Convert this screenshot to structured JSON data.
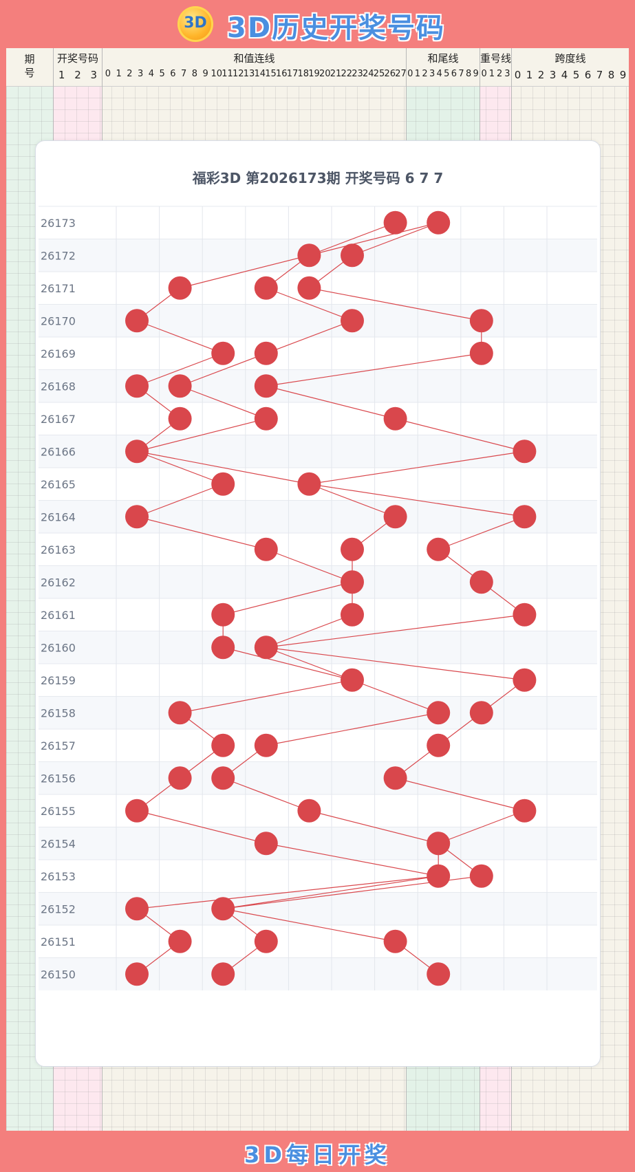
{
  "header": {
    "logo_text": "3D",
    "title": "3D历史开奖号码"
  },
  "table_headers": {
    "period": "期号",
    "draw_numbers": "开奖号码",
    "sum_line": "和值连线",
    "sum_tail_line": "和尾线",
    "repeat_line": "重号线",
    "span_line": "跨度线",
    "draw_number_positions": [
      "1",
      "2",
      "3"
    ],
    "sum_values": [
      "0",
      "1",
      "2",
      "3",
      "4",
      "5",
      "6",
      "7",
      "8",
      "9",
      "10",
      "11",
      "12",
      "13",
      "14",
      "15",
      "16",
      "17",
      "18",
      "19",
      "20",
      "21",
      "22",
      "23",
      "24",
      "25",
      "26",
      "27"
    ],
    "sum_tail_values": [
      "0",
      "1",
      "2",
      "3",
      "4",
      "5",
      "6",
      "7",
      "8",
      "9"
    ],
    "repeat_values": [
      "0",
      "1",
      "2",
      "3"
    ],
    "span_values": [
      "0",
      "1",
      "2",
      "3",
      "4",
      "5",
      "6",
      "7",
      "8",
      "9"
    ]
  },
  "card": {
    "title": "福彩3D 第2026173期  开奖号码 6 7 7"
  },
  "chart_data": {
    "type": "scatter",
    "x_categories": [
      "0",
      "1",
      "2",
      "3",
      "4",
      "5",
      "6",
      "7",
      "8",
      "9"
    ],
    "x_axis_labels_printed": false,
    "rows": [
      {
        "period": "26173",
        "digits": [
          6,
          7,
          7
        ]
      },
      {
        "period": "26172",
        "digits": [
          4,
          5,
          4
        ]
      },
      {
        "period": "26171",
        "digits": [
          1,
          3,
          4
        ]
      },
      {
        "period": "26170",
        "digits": [
          0,
          5,
          8
        ]
      },
      {
        "period": "26169",
        "digits": [
          2,
          3,
          8
        ]
      },
      {
        "period": "26168",
        "digits": [
          0,
          1,
          3
        ]
      },
      {
        "period": "26167",
        "digits": [
          1,
          3,
          6
        ]
      },
      {
        "period": "26166",
        "digits": [
          0,
          0,
          9
        ]
      },
      {
        "period": "26165",
        "digits": [
          2,
          4,
          4
        ]
      },
      {
        "period": "26164",
        "digits": [
          0,
          6,
          9
        ]
      },
      {
        "period": "26163",
        "digits": [
          3,
          5,
          7
        ]
      },
      {
        "period": "26162",
        "digits": [
          5,
          5,
          8
        ]
      },
      {
        "period": "26161",
        "digits": [
          2,
          5,
          9
        ]
      },
      {
        "period": "26160",
        "digits": [
          2,
          3,
          3
        ]
      },
      {
        "period": "26159",
        "digits": [
          5,
          5,
          9
        ]
      },
      {
        "period": "26158",
        "digits": [
          1,
          7,
          8
        ]
      },
      {
        "period": "26157",
        "digits": [
          2,
          3,
          7
        ]
      },
      {
        "period": "26156",
        "digits": [
          1,
          2,
          6
        ]
      },
      {
        "period": "26155",
        "digits": [
          0,
          4,
          9
        ]
      },
      {
        "period": "26154",
        "digits": [
          3,
          7,
          7
        ]
      },
      {
        "period": "26153",
        "digits": [
          7,
          7,
          8
        ]
      },
      {
        "period": "26152",
        "digits": [
          0,
          2,
          2
        ]
      },
      {
        "period": "26151",
        "digits": [
          1,
          3,
          6
        ]
      },
      {
        "period": "26150",
        "digits": [
          0,
          2,
          7
        ]
      }
    ],
    "line_color": "#d9474c",
    "point_color": "#d9474c"
  },
  "footer": {
    "title": "3D每日开奖"
  }
}
